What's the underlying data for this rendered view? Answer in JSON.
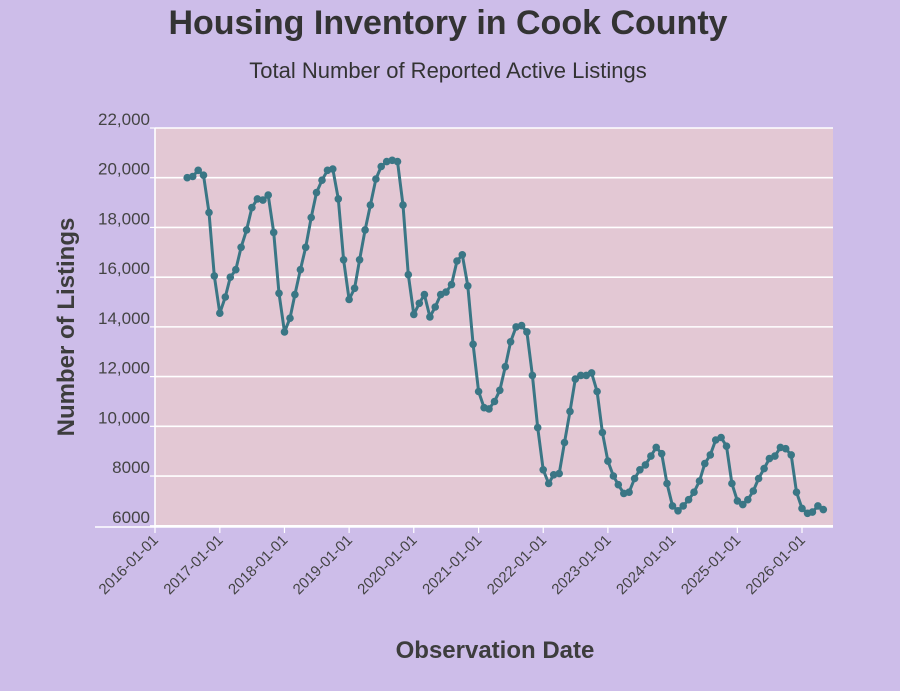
{
  "chart_data": {
    "type": "line",
    "title": "Housing Inventory in Cook County",
    "subtitle": "Total Number of Reported Active Listings",
    "xlabel": "Observation Date",
    "ylabel": "Number of Listings",
    "y_ticks": [
      "6000",
      "8000",
      "10,000",
      "12,000",
      "14,000",
      "16,000",
      "18,000",
      "20,000",
      "22,000"
    ],
    "y_tick_values": [
      6000,
      8000,
      10000,
      12000,
      14000,
      16000,
      18000,
      20000,
      22000
    ],
    "x_ticks": [
      "2016-01-01",
      "2017-01-01",
      "2018-01-01",
      "2019-01-01",
      "2020-01-01",
      "2021-01-01",
      "2022-01-01",
      "2023-01-01",
      "2024-01-01",
      "2025-01-01",
      "2026-01-01"
    ],
    "ylim": [
      5950,
      22000
    ],
    "grid": true,
    "line_color": "#3a7685",
    "panel_color": "#e3c8d4",
    "x": [
      "2016-07-01",
      "2016-08-01",
      "2016-09-01",
      "2016-10-01",
      "2016-11-01",
      "2016-12-01",
      "2017-01-01",
      "2017-02-01",
      "2017-03-01",
      "2017-04-01",
      "2017-05-01",
      "2017-06-01",
      "2017-07-01",
      "2017-08-01",
      "2017-09-01",
      "2017-10-01",
      "2017-11-01",
      "2017-12-01",
      "2018-01-01",
      "2018-02-01",
      "2018-03-01",
      "2018-04-01",
      "2018-05-01",
      "2018-06-01",
      "2018-07-01",
      "2018-08-01",
      "2018-09-01",
      "2018-10-01",
      "2018-11-01",
      "2018-12-01",
      "2019-01-01",
      "2019-02-01",
      "2019-03-01",
      "2019-04-01",
      "2019-05-01",
      "2019-06-01",
      "2019-07-01",
      "2019-08-01",
      "2019-09-01",
      "2019-10-01",
      "2019-11-01",
      "2019-12-01",
      "2020-01-01",
      "2020-02-01",
      "2020-03-01",
      "2020-04-01",
      "2020-05-01",
      "2020-06-01",
      "2020-07-01",
      "2020-08-01",
      "2020-09-01",
      "2020-10-01",
      "2020-11-01",
      "2020-12-01",
      "2021-01-01",
      "2021-02-01",
      "2021-03-01",
      "2021-04-01",
      "2021-05-01",
      "2021-06-01",
      "2021-07-01",
      "2021-08-01",
      "2021-09-01",
      "2021-10-01",
      "2021-11-01",
      "2021-12-01",
      "2022-01-01",
      "2022-02-01",
      "2022-03-01",
      "2022-04-01",
      "2022-05-01",
      "2022-06-01",
      "2022-07-01",
      "2022-08-01",
      "2022-09-01",
      "2022-10-01",
      "2022-11-01",
      "2022-12-01",
      "2023-01-01",
      "2023-02-01",
      "2023-03-01",
      "2023-04-01",
      "2023-05-01",
      "2023-06-01",
      "2023-07-01",
      "2023-08-01",
      "2023-09-01",
      "2023-10-01",
      "2023-11-01",
      "2023-12-01",
      "2024-01-01",
      "2024-02-01",
      "2024-03-01",
      "2024-04-01",
      "2024-05-01",
      "2024-06-01",
      "2024-07-01",
      "2024-08-01",
      "2024-09-01",
      "2024-10-01",
      "2024-11-01",
      "2024-12-01",
      "2025-01-01",
      "2025-02-01",
      "2025-03-01",
      "2025-04-01",
      "2025-05-01",
      "2025-06-01",
      "2025-07-01",
      "2025-08-01",
      "2025-09-01",
      "2025-10-01",
      "2025-11-01",
      "2025-12-01",
      "2026-01-01",
      "2026-02-01",
      "2026-03-01",
      "2026-04-01",
      "2026-05-01"
    ],
    "values": [
      20000,
      20050,
      20300,
      20100,
      18600,
      16050,
      14550,
      15200,
      16000,
      16300,
      17200,
      17900,
      18800,
      19150,
      19100,
      19300,
      17800,
      15350,
      13800,
      14350,
      15300,
      16300,
      17200,
      18400,
      19400,
      19900,
      20300,
      20350,
      19150,
      16700,
      15100,
      15550,
      16700,
      17900,
      18900,
      19950,
      20450,
      20650,
      20700,
      20650,
      18900,
      16100,
      14500,
      14950,
      15300,
      14400,
      14800,
      15300,
      15400,
      15700,
      16650,
      16900,
      15650,
      13300,
      11400,
      10750,
      10700,
      11000,
      11450,
      12400,
      13400,
      14000,
      14050,
      13800,
      12050,
      9950,
      8250,
      7700,
      8050,
      8100,
      9350,
      10600,
      11900,
      12050,
      12050,
      12150,
      11400,
      9750,
      8600,
      8000,
      7650,
      7300,
      7350,
      7900,
      8250,
      8450,
      8800,
      9150,
      8900,
      7700,
      6800,
      6600,
      6800,
      7050,
      7350,
      7800,
      8500,
      8850,
      9450,
      9550,
      9200,
      7700,
      7000,
      6850,
      7050,
      7400,
      7900,
      8300,
      8700,
      8800,
      9150,
      9100,
      8850,
      7350,
      6700,
      6500,
      6550,
      6800,
      6650
    ]
  }
}
